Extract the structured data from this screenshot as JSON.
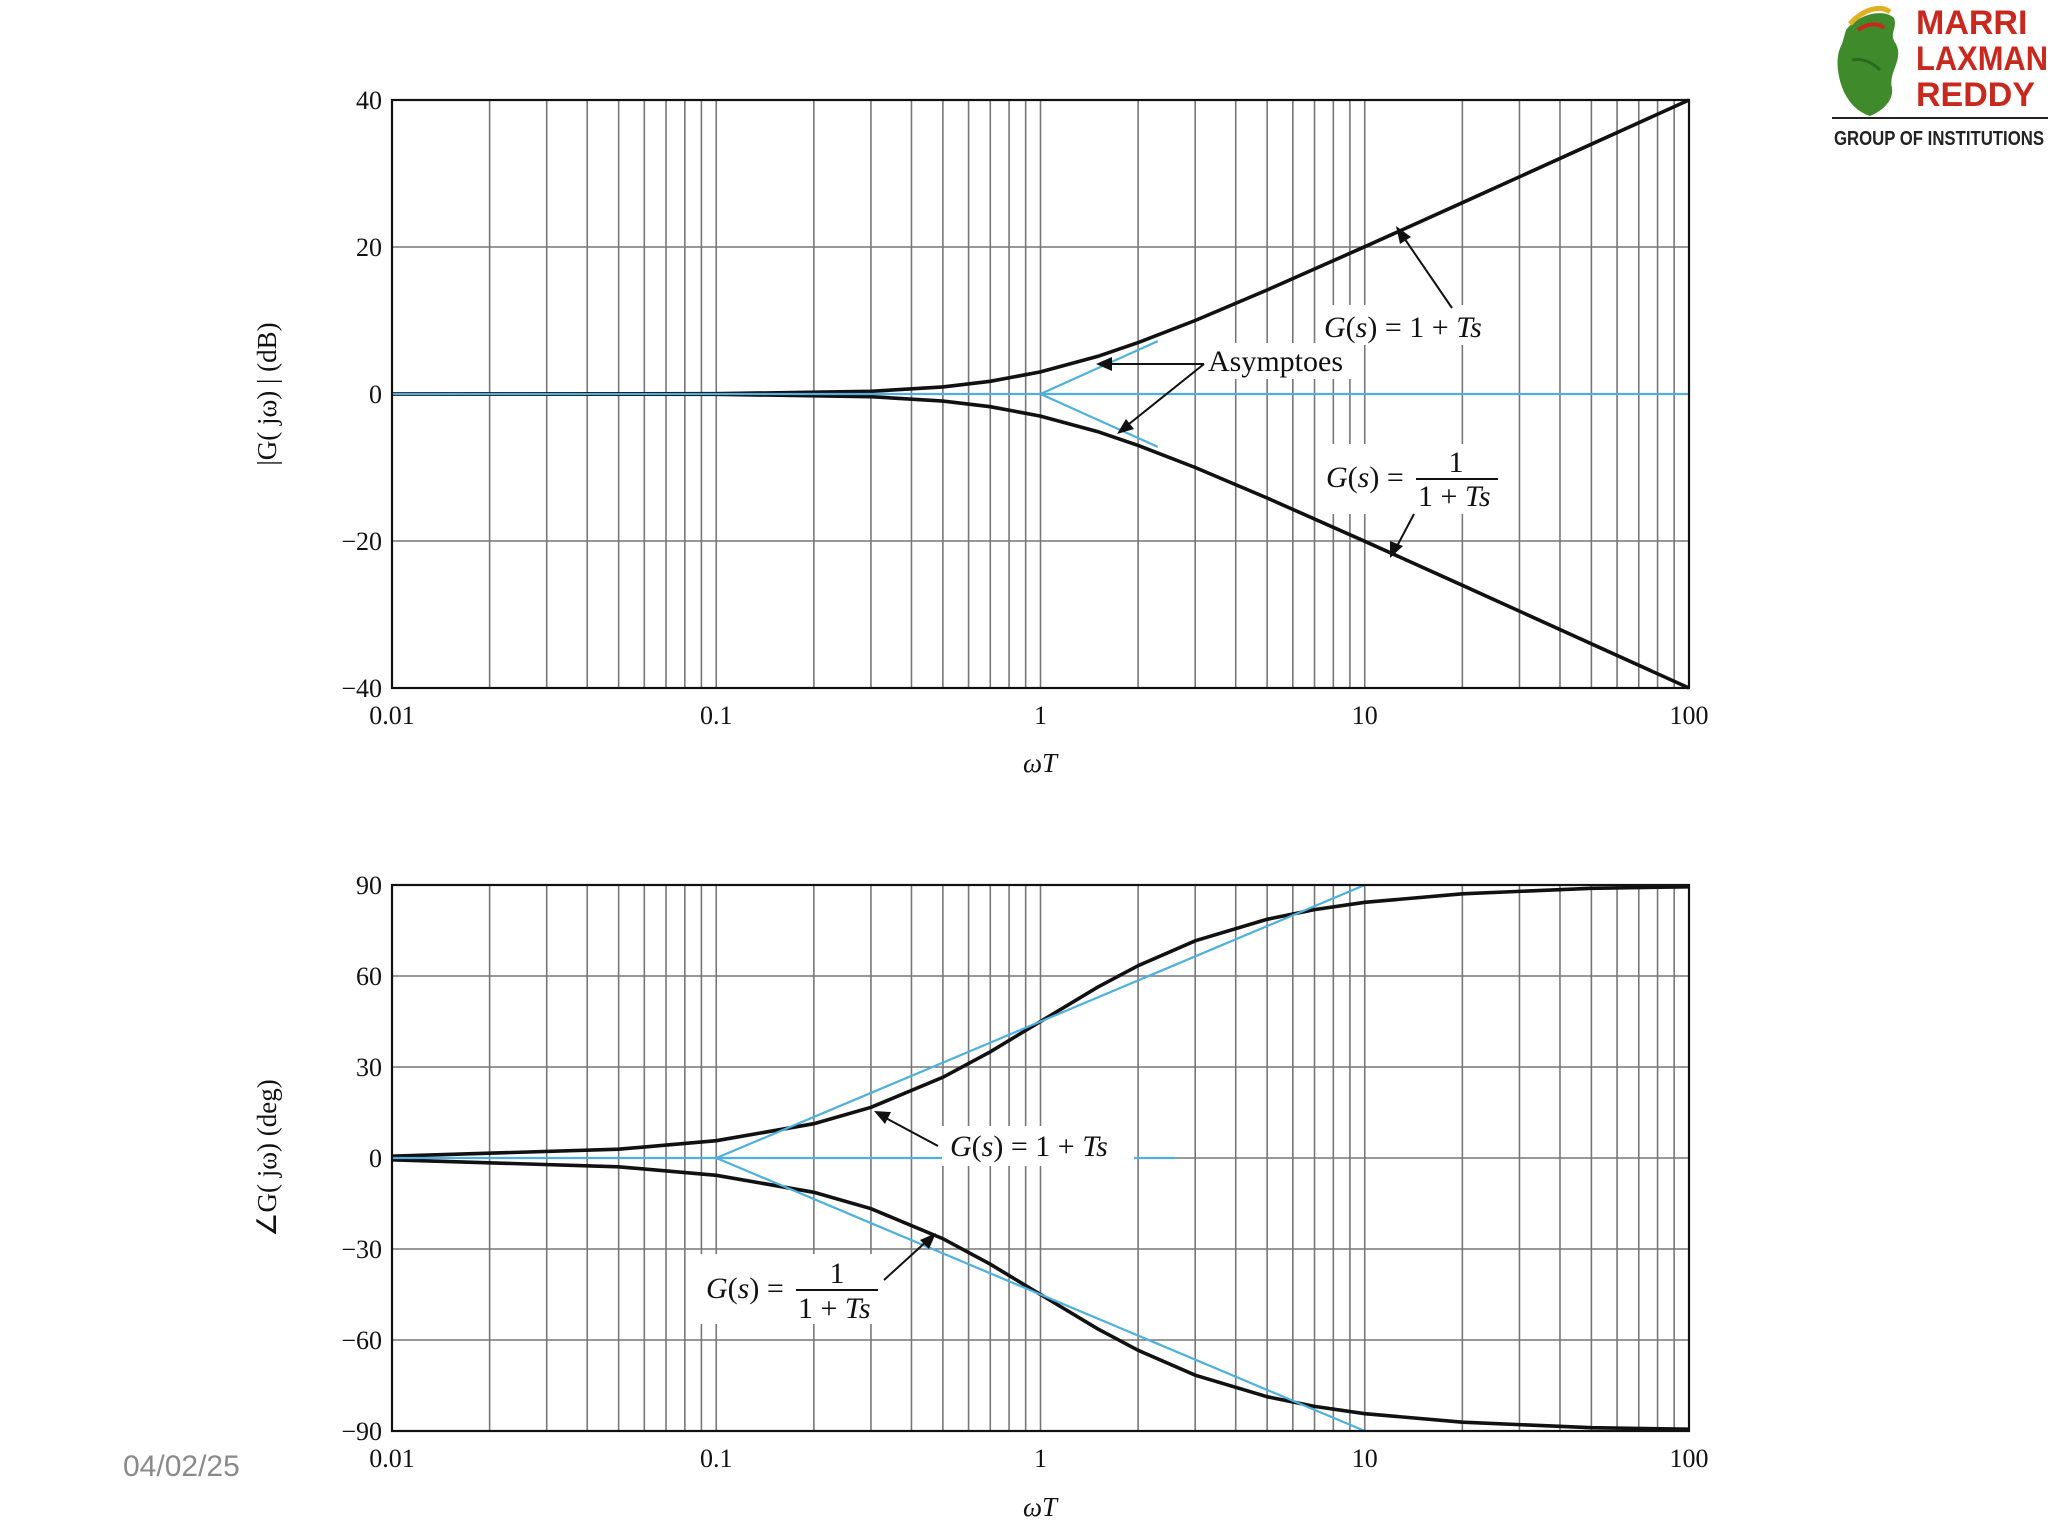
{
  "slide": {
    "date": "04/02/25"
  },
  "logo": {
    "line1": "MARRI",
    "line2": "LAXMAN",
    "line3": "REDDY",
    "line4": "GROUP OF INSTITUTIONS"
  },
  "chart_data": [
    {
      "type": "line",
      "name": "magnitude",
      "x_scale": "log",
      "xlim": [
        0.01,
        100
      ],
      "ylim": [
        -40,
        40
      ],
      "xticks": [
        "0.01",
        "0.1",
        "1",
        "10",
        "100"
      ],
      "yticks": [
        "40",
        "20",
        "0",
        "−20",
        "−40"
      ],
      "xlabel": "ωT",
      "ylabel": "|G( jω) | (dB)",
      "grid": true,
      "series": [
        {
          "role": "curve",
          "x": [
            0.01,
            0.1,
            0.3,
            0.5,
            0.7,
            1,
            1.5,
            2,
            3,
            5,
            10,
            20,
            50,
            100
          ],
          "y": [
            0,
            0.04,
            0.37,
            0.97,
            1.73,
            3.01,
            5.12,
            6.99,
            10.0,
            14.15,
            20.04,
            26.03,
            33.98,
            40.0
          ]
        },
        {
          "role": "curve",
          "x": [
            0.01,
            0.1,
            0.3,
            0.5,
            0.7,
            1,
            1.5,
            2,
            3,
            5,
            10,
            20,
            50,
            100
          ],
          "y": [
            0,
            -0.04,
            -0.37,
            -0.97,
            -1.73,
            -3.01,
            -5.12,
            -6.99,
            -10.0,
            -14.15,
            -20.04,
            -26.03,
            -33.98,
            -40.0
          ]
        },
        {
          "role": "asymptote",
          "x": [
            0.01,
            1,
            100
          ],
          "y": [
            0,
            0,
            0
          ]
        },
        {
          "role": "asymptote",
          "x": [
            1,
            2.3
          ],
          "y": [
            0,
            7.2
          ]
        },
        {
          "role": "asymptote",
          "x": [
            1,
            2.3
          ],
          "y": [
            0,
            -7.2
          ]
        }
      ],
      "annotations": {
        "upper": {
          "pre": "G",
          "mid": "(",
          "var": "s",
          "post": ") = 1 + ",
          "tail": "Ts"
        },
        "lower": {
          "pre": "G",
          "mid": "(",
          "var": "s",
          "post": ") =",
          "num": "1",
          "den": "1 + ",
          "den_tail": "Ts"
        },
        "asymptotes": "Asymptoes"
      }
    },
    {
      "type": "line",
      "name": "phase",
      "x_scale": "log",
      "xlim": [
        0.01,
        100
      ],
      "ylim": [
        -90,
        90
      ],
      "xticks": [
        "0.01",
        "0.1",
        "1",
        "10",
        "100"
      ],
      "yticks": [
        "90",
        "60",
        "30",
        "0",
        "−30",
        "−60",
        "−90"
      ],
      "xlabel": "ωT",
      "ylabel": "∠G( jω) (deg)",
      "grid": true,
      "series": [
        {
          "role": "curve",
          "x": [
            0.01,
            0.05,
            0.1,
            0.2,
            0.3,
            0.5,
            0.7,
            1,
            1.5,
            2,
            3,
            5,
            7,
            10,
            20,
            50,
            100
          ],
          "y": [
            0.6,
            2.9,
            5.7,
            11.3,
            16.7,
            26.6,
            35.0,
            45.0,
            56.3,
            63.4,
            71.6,
            78.7,
            81.9,
            84.3,
            87.1,
            88.9,
            89.4
          ]
        },
        {
          "role": "curve",
          "x": [
            0.01,
            0.05,
            0.1,
            0.2,
            0.3,
            0.5,
            0.7,
            1,
            1.5,
            2,
            3,
            5,
            7,
            10,
            20,
            50,
            100
          ],
          "y": [
            -0.6,
            -2.9,
            -5.7,
            -11.3,
            -16.7,
            -26.6,
            -35.0,
            -45.0,
            -56.3,
            -63.4,
            -71.6,
            -78.7,
            -81.9,
            -84.3,
            -87.1,
            -88.9,
            -89.4
          ]
        },
        {
          "role": "asymptote",
          "x": [
            0.01,
            0.1,
            10
          ],
          "y": [
            0,
            0,
            90
          ]
        },
        {
          "role": "asymptote",
          "x": [
            0.1,
            10
          ],
          "y": [
            0,
            -90
          ]
        },
        {
          "role": "asymptote",
          "x": [
            0.1,
            2.6
          ],
          "y": [
            0,
            0
          ]
        }
      ],
      "annotations": {
        "upper": {
          "pre": "G",
          "mid": "(",
          "var": "s",
          "post": ") = 1 + ",
          "tail": "Ts"
        },
        "lower": {
          "pre": "G",
          "mid": "(",
          "var": "s",
          "post": ") =",
          "num": "1",
          "den": "1 + ",
          "den_tail": "Ts"
        }
      }
    }
  ]
}
